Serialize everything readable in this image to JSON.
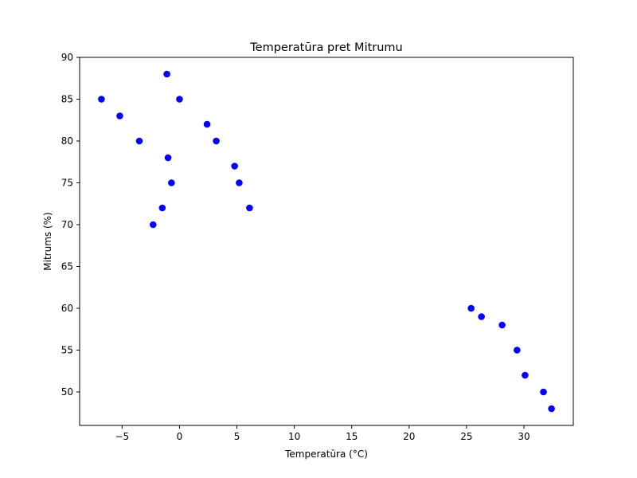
{
  "chart_data": {
    "type": "scatter",
    "title": "Temperatūra pret Mitrumu",
    "xlabel": "Temperatūra (°C)",
    "ylabel": "Mitrums (%)",
    "xlim": [
      -8.7,
      34.3
    ],
    "ylim": [
      46.0,
      90.0
    ],
    "xticks": [
      -5,
      0,
      5,
      10,
      15,
      20,
      25,
      30
    ],
    "xtick_labels": [
      "−5",
      "0",
      "5",
      "10",
      "15",
      "20",
      "25",
      "30"
    ],
    "yticks": [
      50,
      55,
      60,
      65,
      70,
      75,
      80,
      85,
      90
    ],
    "ytick_labels": [
      "50",
      "55",
      "60",
      "65",
      "70",
      "75",
      "80",
      "85",
      "90"
    ],
    "grid": false,
    "marker_color": "#0000ff",
    "series": [
      {
        "x": [
          -6.8,
          -5.2,
          -3.5,
          -1.1,
          0.0,
          -1.0,
          -0.7,
          -1.5,
          -2.3,
          2.4,
          3.2,
          4.8,
          5.2,
          6.1,
          25.4,
          26.3,
          28.1,
          29.4,
          30.1,
          31.7,
          32.4
        ],
        "y": [
          85,
          83,
          80,
          88,
          85,
          78,
          75,
          72,
          70,
          82,
          80,
          77,
          75,
          72,
          60,
          59,
          58,
          55,
          52,
          50,
          48
        ]
      }
    ]
  }
}
